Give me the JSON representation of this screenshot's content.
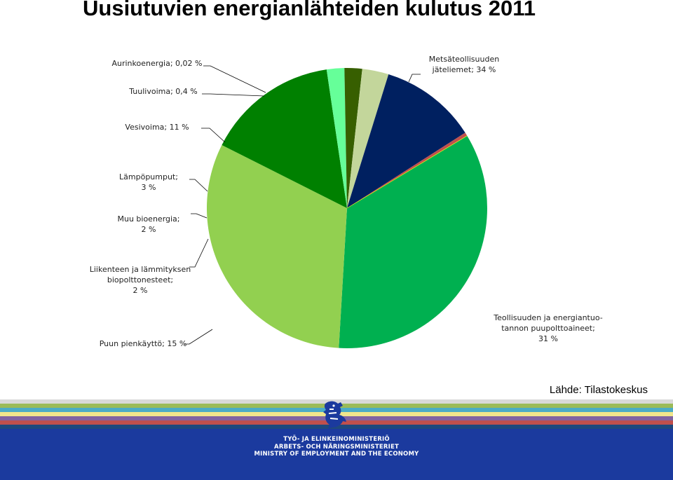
{
  "title": "Uusiutuvien energianlähteiden kulutus 2011",
  "source": "Lähde: Tilastokeskus",
  "chart_data": {
    "type": "pie",
    "title": "Uusiutuvien energianlähteiden kulutus 2011",
    "unit": "%",
    "slices": [
      {
        "label_lines": [
          "Metsäteollisuuden",
          "jäteliemet; 34 %"
        ],
        "value": 34,
        "color": "#00b050"
      },
      {
        "label_lines": [
          "Teollisuuden ja energiantuo-",
          "tannon puupolttoaineet;",
          "31 %"
        ],
        "value": 31,
        "color": "#92d050"
      },
      {
        "label_lines": [
          "Puun pienkäyttö; 15 %"
        ],
        "value": 15,
        "color": "#008000"
      },
      {
        "label_lines": [
          "Liikenteen ja lämmityksen",
          "biopolttonesteet;",
          "2 %"
        ],
        "value": 2,
        "color": "#66ff99"
      },
      {
        "label_lines": [
          "Muu bioenergia;",
          "2 %"
        ],
        "value": 2,
        "color": "#375f00"
      },
      {
        "label_lines": [
          "Lämpöpumput;",
          "3 %"
        ],
        "value": 3,
        "color": "#c3d69b"
      },
      {
        "label_lines": [
          "Vesivoima; 11 %"
        ],
        "value": 11,
        "color": "#002060"
      },
      {
        "label_lines": [
          "Tuulivoima; 0,4 %"
        ],
        "value": 0.4,
        "color": "#c0504d"
      },
      {
        "label_lines": [
          "Aurinkoenergia; 0,02 %"
        ],
        "value": 0.02,
        "color": "#ffff00"
      }
    ]
  },
  "footer": {
    "ministry_lines": [
      "TYÖ- JA ELINKEINOMINISTERIÖ",
      "ARBETS- OCH NÄRINGSMINISTERIET",
      "MINISTRY OF EMPLOYMENT AND THE ECONOMY"
    ],
    "stripe_colors": [
      "#d9d9d9",
      "#9bbb59",
      "#4bacc6",
      "#f0e68c",
      "#8064a2",
      "#c0504d",
      "#1f497d"
    ]
  }
}
